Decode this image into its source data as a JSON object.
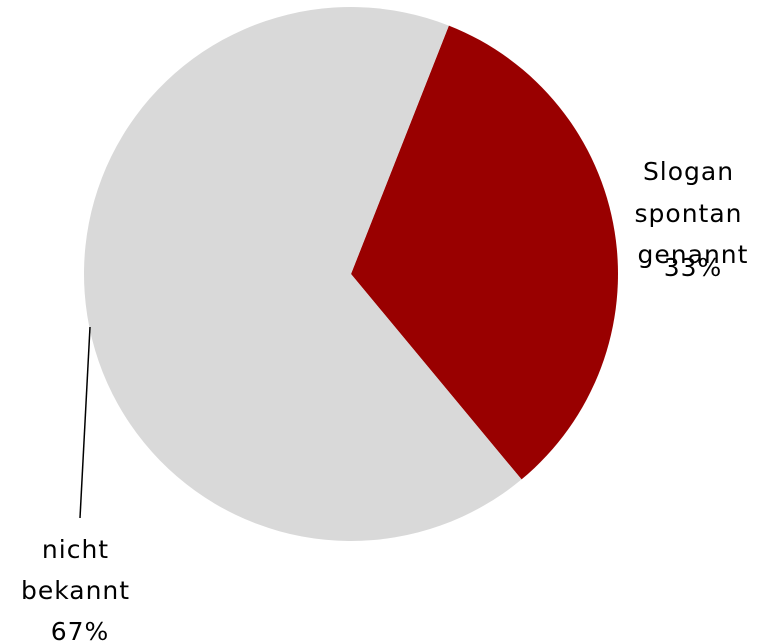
{
  "chart_data": {
    "type": "pie",
    "slices": [
      {
        "label_lines": [
          "Slogan",
          "spontan",
          "genannt"
        ],
        "percent_label": "33%",
        "value": 33,
        "color": "#990000"
      },
      {
        "label_lines": [
          "nicht",
          "bekannt"
        ],
        "percent_label": "67%",
        "value": 67,
        "color": "#d9d9d9"
      }
    ],
    "start_angle_deg": 21.5,
    "direction": "clockwise",
    "legend": "none"
  }
}
